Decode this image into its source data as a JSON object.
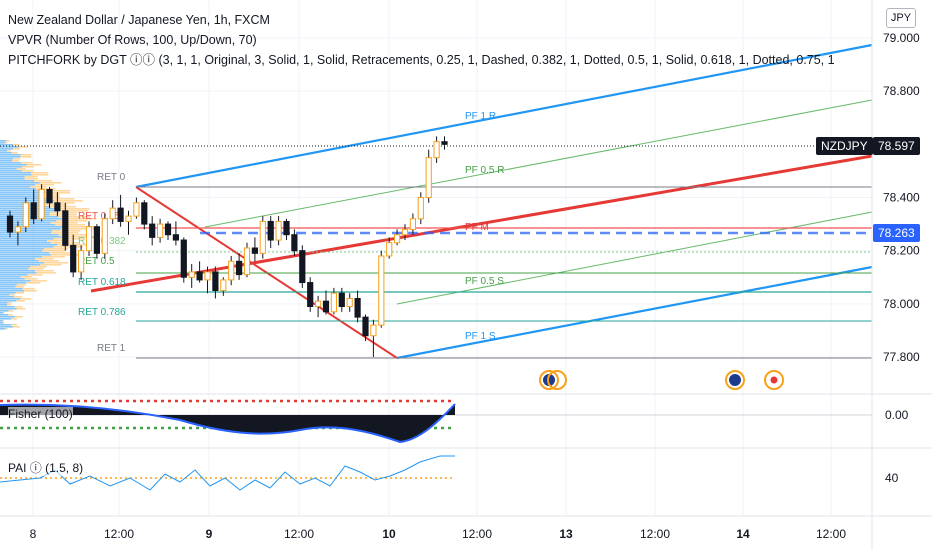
{
  "header": {
    "symbol_line": "New Zealand Dollar / Japanese Yen, 1h, FXCM",
    "vpvr_line": "VPVR (Number Of Rows, 100, Up/Down, 70)",
    "pitchfork_line": "PITCHFORK by DGT ⓘⓘ (3, 1, 1, Original, 3, Solid, 1, Solid, Retracements, 0.25, 1, Dashed, 0.382, 1, Dotted, 0.5, 1, Solid, 0.618, 1, Dotted, 0.75, 1"
  },
  "currency": "JPY",
  "price_axis": {
    "ticks": [
      "79.000",
      "78.800",
      "78.400",
      "78.200",
      "78.000",
      "77.800"
    ],
    "tick_values": [
      79.0,
      78.8,
      78.4,
      78.2,
      78.0,
      77.8
    ]
  },
  "price_tags": {
    "symbol": "NZDJPY",
    "last_price": "78.597",
    "level_price": "78.263"
  },
  "time_axis": {
    "labels": [
      "8",
      "12:00",
      "9",
      "12:00",
      "10",
      "12:00",
      "13",
      "12:00",
      "14",
      "12:00"
    ]
  },
  "pitchfork_labels": {
    "pf_1r": "PF 1 R",
    "pf_05r": "PF 0.5 R",
    "pf_m": "PF M",
    "pf_05s": "PF 0.5 S",
    "pf_1s": "PF 1 S"
  },
  "retracement_labels": {
    "ret0": "RET 0",
    "ret025": "RET 0.25",
    "ret0382": "RET 0.382",
    "ret05": "RET 0.5",
    "ret0618": "RET 0.618",
    "ret0786": "RET 0.786",
    "ret1": "RET 1"
  },
  "indicators": {
    "fisher_label": "Fisher (100)",
    "fisher_value": "0.00",
    "pai_label": "PAI ⓘ (1.5, 8)",
    "pai_value": "40"
  },
  "colors": {
    "up": "#f7a11a",
    "down": "#131722",
    "pitchfork_outer": "#2196f3",
    "pitchfork_median": "#e53935",
    "pitchfork_half": "#66bb6a",
    "level_dashed": "#2962ff",
    "nzdjpy_tag": "#131722",
    "level_tag": "#2962ff"
  },
  "chart_data": {
    "type": "candlestick",
    "candles": [
      [
        78.33,
        78.35,
        78.25,
        78.27
      ],
      [
        78.27,
        78.31,
        78.22,
        78.29
      ],
      [
        78.29,
        78.4,
        78.27,
        78.38
      ],
      [
        78.38,
        78.43,
        78.3,
        78.32
      ],
      [
        78.32,
        78.45,
        78.31,
        78.43
      ],
      [
        78.43,
        78.44,
        78.36,
        78.38
      ],
      [
        78.38,
        78.42,
        78.33,
        78.35
      ],
      [
        78.35,
        78.38,
        78.2,
        78.22
      ],
      [
        78.22,
        78.26,
        78.1,
        78.12
      ],
      [
        78.12,
        78.22,
        78.09,
        78.2
      ],
      [
        78.2,
        78.31,
        78.18,
        78.29
      ],
      [
        78.29,
        78.3,
        78.17,
        78.19
      ],
      [
        78.19,
        78.34,
        78.17,
        78.32
      ],
      [
        78.32,
        78.39,
        78.3,
        78.36
      ],
      [
        78.36,
        78.41,
        78.29,
        78.31
      ],
      [
        78.31,
        78.35,
        78.26,
        78.33
      ],
      [
        78.33,
        78.4,
        78.32,
        78.38
      ],
      [
        78.38,
        78.39,
        78.28,
        78.3
      ],
      [
        78.3,
        78.33,
        78.22,
        78.25
      ],
      [
        78.25,
        78.32,
        78.23,
        78.3
      ],
      [
        78.3,
        78.31,
        78.24,
        78.26
      ],
      [
        78.26,
        78.31,
        78.22,
        78.24
      ],
      [
        78.24,
        78.25,
        78.08,
        78.1
      ],
      [
        78.1,
        78.15,
        78.06,
        78.12
      ],
      [
        78.12,
        78.16,
        78.08,
        78.09
      ],
      [
        78.09,
        78.14,
        78.04,
        78.12
      ],
      [
        78.12,
        78.14,
        78.02,
        78.05
      ],
      [
        78.05,
        78.1,
        78.03,
        78.09
      ],
      [
        78.09,
        78.18,
        78.07,
        78.16
      ],
      [
        78.16,
        78.19,
        78.09,
        78.11
      ],
      [
        78.11,
        78.23,
        78.1,
        78.21
      ],
      [
        78.21,
        78.25,
        78.16,
        78.19
      ],
      [
        78.19,
        78.33,
        78.17,
        78.31
      ],
      [
        78.31,
        78.33,
        78.21,
        78.24
      ],
      [
        78.24,
        78.33,
        78.22,
        78.31
      ],
      [
        78.31,
        78.32,
        78.24,
        78.26
      ],
      [
        78.26,
        78.28,
        78.18,
        78.2
      ],
      [
        78.2,
        78.22,
        78.06,
        78.08
      ],
      [
        78.08,
        78.1,
        77.97,
        77.99
      ],
      [
        77.99,
        78.03,
        77.95,
        78.01
      ],
      [
        78.01,
        78.05,
        77.96,
        77.97
      ],
      [
        77.97,
        78.06,
        77.96,
        78.04
      ],
      [
        78.04,
        78.06,
        77.97,
        77.99
      ],
      [
        77.99,
        78.04,
        77.97,
        78.02
      ],
      [
        78.02,
        78.05,
        77.93,
        77.95
      ],
      [
        77.95,
        77.96,
        77.86,
        77.88
      ],
      [
        77.88,
        77.94,
        77.8,
        77.92
      ],
      [
        77.92,
        78.2,
        77.91,
        78.18
      ],
      [
        78.18,
        78.25,
        78.17,
        78.23
      ],
      [
        78.23,
        78.28,
        78.22,
        78.26
      ],
      [
        78.26,
        78.3,
        78.24,
        78.28
      ],
      [
        78.28,
        78.34,
        78.26,
        78.32
      ],
      [
        78.32,
        78.42,
        78.3,
        78.4
      ],
      [
        78.4,
        78.58,
        78.38,
        78.55
      ],
      [
        78.55,
        78.63,
        78.53,
        78.61
      ],
      [
        78.61,
        78.63,
        78.58,
        78.6
      ]
    ],
    "last": 78.597,
    "ylim": [
      77.7,
      79.06
    ]
  }
}
